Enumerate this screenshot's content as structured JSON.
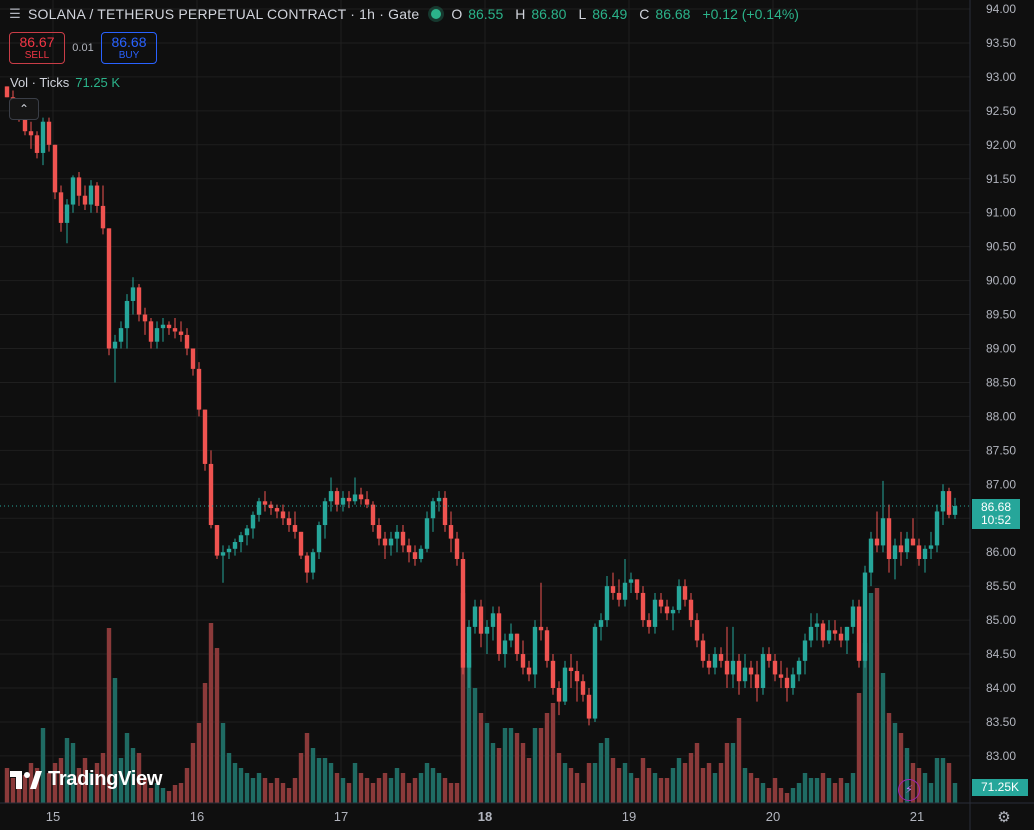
{
  "header": {
    "title": "SOLANA / TETHERUS PERPETUAL CONTRACT · 1h · Gate",
    "open_label": "O",
    "open_value": "86.55",
    "high_label": "H",
    "high_value": "86.80",
    "low_label": "L",
    "low_value": "86.49",
    "close_label": "C",
    "close_value": "86.68",
    "change": "+0.12 (+0.14%)"
  },
  "trade": {
    "sell_price": "86.67",
    "sell_label": "SELL",
    "spread": "0.01",
    "buy_price": "86.68",
    "buy_label": "BUY"
  },
  "volume_legend": {
    "title": "Vol · Ticks",
    "value": "71.25 K"
  },
  "collapse_glyph": "⌃",
  "branding": {
    "logo_mark": "17",
    "logo_text": "TradingView"
  },
  "current_price": {
    "price": "86.68",
    "countdown": "10:52"
  },
  "current_volume": "71.25K",
  "bolt_glyph": "⚡",
  "settings_glyph": "⚙",
  "colors": {
    "up": "#26a69a",
    "down": "#ef5350",
    "up_vol": "#1f6b63",
    "down_vol": "#8b3a3a",
    "background": "#0f0f0f",
    "grid": "#1f1f1f"
  },
  "chart_data": {
    "type": "candlestick",
    "title": "SOLANA / TETHERUS PERPETUAL CONTRACT · 1h · Gate",
    "interval": "1h",
    "ylim": [
      82.5,
      94.0
    ],
    "y_ticks": [
      "94.00",
      "93.50",
      "93.00",
      "92.50",
      "92.00",
      "91.50",
      "91.00",
      "90.50",
      "90.00",
      "89.50",
      "89.00",
      "88.50",
      "88.00",
      "87.50",
      "87.00",
      "86.50",
      "86.00",
      "85.50",
      "85.00",
      "84.50",
      "84.00",
      "83.50",
      "83.00"
    ],
    "x_ticks": [
      {
        "label": "15",
        "index": 4,
        "bold": false
      },
      {
        "label": "16",
        "index": 28,
        "bold": false
      },
      {
        "label": "17",
        "index": 52,
        "bold": false
      },
      {
        "label": "18",
        "index": 76,
        "bold": true
      },
      {
        "label": "19",
        "index": 100,
        "bold": false
      },
      {
        "label": "20",
        "index": 124,
        "bold": false
      },
      {
        "label": "21",
        "index": 148,
        "bold": false
      }
    ],
    "grid": true,
    "volume_scale_max": 230,
    "candles": [
      [
        92.86,
        92.86,
        92.7,
        92.7,
        35
      ],
      [
        92.7,
        92.8,
        92.49,
        92.6,
        25
      ],
      [
        92.6,
        92.6,
        92.34,
        92.4,
        30
      ],
      [
        92.4,
        92.4,
        92.14,
        92.2,
        28
      ],
      [
        92.2,
        92.34,
        91.94,
        92.14,
        40
      ],
      [
        92.14,
        92.2,
        91.8,
        91.88,
        35
      ],
      [
        91.88,
        92.4,
        91.7,
        92.34,
        75
      ],
      [
        92.34,
        92.4,
        91.9,
        92.0,
        30
      ],
      [
        92.0,
        92.0,
        91.2,
        91.3,
        40
      ],
      [
        91.3,
        91.4,
        90.72,
        90.85,
        45
      ],
      [
        90.85,
        91.2,
        90.55,
        91.12,
        65
      ],
      [
        91.12,
        91.55,
        91.0,
        91.52,
        60
      ],
      [
        91.52,
        91.6,
        91.1,
        91.25,
        35
      ],
      [
        91.25,
        91.4,
        91.04,
        91.12,
        45
      ],
      [
        91.12,
        91.48,
        91.0,
        91.4,
        30
      ],
      [
        91.4,
        91.45,
        91.0,
        91.1,
        40
      ],
      [
        91.1,
        91.4,
        90.68,
        90.77,
        50
      ],
      [
        90.77,
        90.77,
        88.9,
        89.0,
        175
      ],
      [
        89.0,
        89.2,
        88.5,
        89.1,
        125
      ],
      [
        89.1,
        89.4,
        89.0,
        89.3,
        45
      ],
      [
        89.3,
        89.8,
        89.0,
        89.7,
        70
      ],
      [
        89.7,
        90.05,
        89.5,
        89.9,
        55
      ],
      [
        89.9,
        89.95,
        89.4,
        89.5,
        50
      ],
      [
        89.5,
        89.6,
        89.2,
        89.4,
        25
      ],
      [
        89.4,
        89.45,
        89.0,
        89.1,
        15
      ],
      [
        89.1,
        89.4,
        89.0,
        89.3,
        20
      ],
      [
        89.3,
        89.45,
        89.1,
        89.35,
        15
      ],
      [
        89.35,
        89.4,
        89.2,
        89.3,
        12
      ],
      [
        89.3,
        89.45,
        89.15,
        89.25,
        18
      ],
      [
        89.25,
        89.4,
        89.1,
        89.2,
        20
      ],
      [
        89.2,
        89.3,
        88.9,
        89.0,
        35
      ],
      [
        89.0,
        89.0,
        88.6,
        88.7,
        60
      ],
      [
        88.7,
        88.8,
        88.0,
        88.1,
        80
      ],
      [
        88.1,
        88.1,
        87.2,
        87.3,
        120
      ],
      [
        87.3,
        87.5,
        86.35,
        86.4,
        180
      ],
      [
        86.4,
        86.4,
        85.9,
        85.95,
        155
      ],
      [
        85.95,
        86.1,
        85.55,
        86.0,
        80
      ],
      [
        86.0,
        86.1,
        85.9,
        86.05,
        50
      ],
      [
        86.05,
        86.2,
        85.95,
        86.15,
        40
      ],
      [
        86.15,
        86.3,
        86.0,
        86.25,
        35
      ],
      [
        86.25,
        86.4,
        86.1,
        86.35,
        30
      ],
      [
        86.35,
        86.6,
        86.2,
        86.55,
        25
      ],
      [
        86.55,
        86.8,
        86.45,
        86.75,
        30
      ],
      [
        86.75,
        86.9,
        86.6,
        86.7,
        25
      ],
      [
        86.7,
        86.75,
        86.55,
        86.65,
        20
      ],
      [
        86.65,
        86.7,
        86.5,
        86.6,
        25
      ],
      [
        86.6,
        86.7,
        86.4,
        86.5,
        20
      ],
      [
        86.5,
        86.6,
        86.3,
        86.4,
        15
      ],
      [
        86.4,
        86.6,
        86.2,
        86.3,
        25
      ],
      [
        86.3,
        86.3,
        85.9,
        85.95,
        50
      ],
      [
        85.95,
        86.0,
        85.55,
        85.7,
        70
      ],
      [
        85.7,
        86.05,
        85.6,
        86.0,
        55
      ],
      [
        86.0,
        86.45,
        85.9,
        86.4,
        45
      ],
      [
        86.4,
        86.8,
        86.2,
        86.75,
        45
      ],
      [
        86.75,
        87.1,
        86.6,
        86.9,
        40
      ],
      [
        86.9,
        86.95,
        86.6,
        86.7,
        30
      ],
      [
        86.7,
        86.9,
        86.6,
        86.8,
        25
      ],
      [
        86.8,
        86.9,
        86.65,
        86.75,
        20
      ],
      [
        86.75,
        87.1,
        86.7,
        86.85,
        40
      ],
      [
        86.85,
        86.95,
        86.7,
        86.78,
        30
      ],
      [
        86.78,
        86.9,
        86.65,
        86.7,
        25
      ],
      [
        86.7,
        86.75,
        86.3,
        86.4,
        20
      ],
      [
        86.4,
        86.5,
        86.1,
        86.2,
        25
      ],
      [
        86.2,
        86.3,
        85.9,
        86.1,
        30
      ],
      [
        86.1,
        86.3,
        85.95,
        86.2,
        25
      ],
      [
        86.2,
        86.4,
        86.0,
        86.3,
        35
      ],
      [
        86.3,
        86.4,
        86.0,
        86.1,
        30
      ],
      [
        86.1,
        86.2,
        85.85,
        86.0,
        20
      ],
      [
        86.0,
        86.1,
        85.8,
        85.9,
        25
      ],
      [
        85.9,
        86.1,
        85.85,
        86.05,
        30
      ],
      [
        86.05,
        86.6,
        86.0,
        86.5,
        40
      ],
      [
        86.5,
        86.8,
        86.3,
        86.75,
        35
      ],
      [
        86.75,
        86.9,
        86.6,
        86.8,
        30
      ],
      [
        86.8,
        86.9,
        86.3,
        86.4,
        25
      ],
      [
        86.4,
        86.6,
        86.0,
        86.2,
        20
      ],
      [
        86.2,
        86.3,
        85.8,
        85.9,
        20
      ],
      [
        85.9,
        86.0,
        84.2,
        84.3,
        210
      ],
      [
        84.3,
        85.0,
        84.0,
        84.9,
        150
      ],
      [
        84.9,
        85.3,
        84.8,
        85.2,
        115
      ],
      [
        85.2,
        85.3,
        84.6,
        84.8,
        90
      ],
      [
        84.8,
        85.0,
        84.5,
        84.9,
        80
      ],
      [
        84.9,
        85.2,
        84.7,
        85.1,
        60
      ],
      [
        85.1,
        85.2,
        84.4,
        84.5,
        55
      ],
      [
        84.5,
        84.8,
        84.3,
        84.7,
        75
      ],
      [
        84.7,
        84.95,
        84.6,
        84.8,
        75
      ],
      [
        84.8,
        84.8,
        84.4,
        84.5,
        70
      ],
      [
        84.5,
        84.7,
        84.2,
        84.3,
        60
      ],
      [
        84.3,
        84.4,
        84.1,
        84.2,
        45
      ],
      [
        84.2,
        85.0,
        84.0,
        84.9,
        75
      ],
      [
        84.9,
        85.55,
        84.7,
        84.85,
        75
      ],
      [
        84.85,
        84.9,
        84.3,
        84.4,
        90
      ],
      [
        84.4,
        84.5,
        83.9,
        84.0,
        100
      ],
      [
        84.0,
        84.1,
        83.6,
        83.8,
        50
      ],
      [
        83.8,
        84.4,
        83.75,
        84.3,
        40
      ],
      [
        84.3,
        84.5,
        84.0,
        84.25,
        35
      ],
      [
        84.25,
        84.4,
        83.8,
        84.1,
        30
      ],
      [
        84.1,
        84.2,
        83.8,
        83.9,
        20
      ],
      [
        83.9,
        84.0,
        83.45,
        83.55,
        40
      ],
      [
        83.55,
        84.95,
        83.5,
        84.9,
        40
      ],
      [
        84.9,
        85.1,
        84.7,
        85.0,
        60
      ],
      [
        85.0,
        85.65,
        84.9,
        85.5,
        65
      ],
      [
        85.5,
        85.7,
        85.3,
        85.4,
        45
      ],
      [
        85.4,
        85.6,
        85.2,
        85.3,
        35
      ],
      [
        85.3,
        85.9,
        85.2,
        85.55,
        40
      ],
      [
        85.55,
        85.7,
        85.4,
        85.6,
        30
      ],
      [
        85.6,
        85.6,
        85.3,
        85.4,
        25
      ],
      [
        85.4,
        85.5,
        84.9,
        85.0,
        45
      ],
      [
        85.0,
        85.1,
        84.8,
        84.9,
        35
      ],
      [
        84.9,
        85.4,
        84.8,
        85.3,
        30
      ],
      [
        85.3,
        85.4,
        85.1,
        85.2,
        25
      ],
      [
        85.2,
        85.3,
        85.0,
        85.1,
        25
      ],
      [
        85.1,
        85.2,
        84.85,
        85.15,
        35
      ],
      [
        85.15,
        85.6,
        85.1,
        85.5,
        45
      ],
      [
        85.5,
        85.6,
        85.2,
        85.3,
        40
      ],
      [
        85.3,
        85.4,
        84.9,
        85.0,
        50
      ],
      [
        85.0,
        85.1,
        84.6,
        84.7,
        60
      ],
      [
        84.7,
        84.8,
        84.3,
        84.4,
        35
      ],
      [
        84.4,
        84.5,
        84.2,
        84.3,
        40
      ],
      [
        84.3,
        84.6,
        84.2,
        84.5,
        30
      ],
      [
        84.5,
        84.6,
        84.3,
        84.4,
        40
      ],
      [
        84.4,
        84.9,
        84.0,
        84.2,
        60
      ],
      [
        84.2,
        84.9,
        84.0,
        84.4,
        60
      ],
      [
        84.4,
        84.5,
        83.9,
        84.1,
        85
      ],
      [
        84.1,
        84.5,
        84.0,
        84.3,
        35
      ],
      [
        84.3,
        84.4,
        84.0,
        84.2,
        30
      ],
      [
        84.2,
        84.4,
        83.8,
        84.0,
        25
      ],
      [
        84.0,
        84.6,
        83.9,
        84.5,
        20
      ],
      [
        84.5,
        84.6,
        84.3,
        84.4,
        15
      ],
      [
        84.4,
        84.5,
        84.1,
        84.2,
        25
      ],
      [
        84.2,
        84.4,
        84.0,
        84.15,
        15
      ],
      [
        84.15,
        84.3,
        83.8,
        84.0,
        10
      ],
      [
        84.0,
        84.3,
        83.9,
        84.2,
        15
      ],
      [
        84.2,
        84.45,
        84.1,
        84.4,
        20
      ],
      [
        84.4,
        84.8,
        84.2,
        84.7,
        30
      ],
      [
        84.7,
        85.1,
        84.6,
        84.9,
        25
      ],
      [
        84.9,
        85.1,
        84.7,
        84.95,
        25
      ],
      [
        84.95,
        85.0,
        84.6,
        84.7,
        30
      ],
      [
        84.7,
        85.0,
        84.65,
        84.85,
        25
      ],
      [
        84.85,
        85.0,
        84.7,
        84.8,
        20
      ],
      [
        84.8,
        84.9,
        84.6,
        84.7,
        25
      ],
      [
        84.7,
        84.9,
        84.5,
        84.9,
        20
      ],
      [
        84.9,
        85.3,
        84.8,
        85.2,
        30
      ],
      [
        85.2,
        85.3,
        84.3,
        84.4,
        110
      ],
      [
        84.4,
        85.8,
        84.3,
        85.7,
        160
      ],
      [
        85.7,
        86.3,
        85.5,
        86.2,
        210
      ],
      [
        86.2,
        86.6,
        86.0,
        86.1,
        215
      ],
      [
        86.1,
        87.05,
        86.0,
        86.5,
        130
      ],
      [
        86.5,
        86.7,
        85.7,
        85.9,
        90
      ],
      [
        85.9,
        86.2,
        85.6,
        86.1,
        80
      ],
      [
        86.1,
        86.3,
        85.8,
        86.0,
        70
      ],
      [
        86.0,
        86.3,
        85.9,
        86.2,
        55
      ],
      [
        86.2,
        86.5,
        86.1,
        86.1,
        40
      ],
      [
        86.1,
        86.2,
        85.8,
        85.9,
        35
      ],
      [
        85.9,
        86.1,
        85.7,
        86.05,
        30
      ],
      [
        86.05,
        86.3,
        85.9,
        86.1,
        20
      ],
      [
        86.1,
        86.7,
        86.0,
        86.6,
        45
      ],
      [
        86.6,
        87.0,
        86.4,
        86.9,
        45
      ],
      [
        86.9,
        86.95,
        86.5,
        86.55,
        40
      ],
      [
        86.55,
        86.8,
        86.49,
        86.68,
        20
      ]
    ]
  }
}
